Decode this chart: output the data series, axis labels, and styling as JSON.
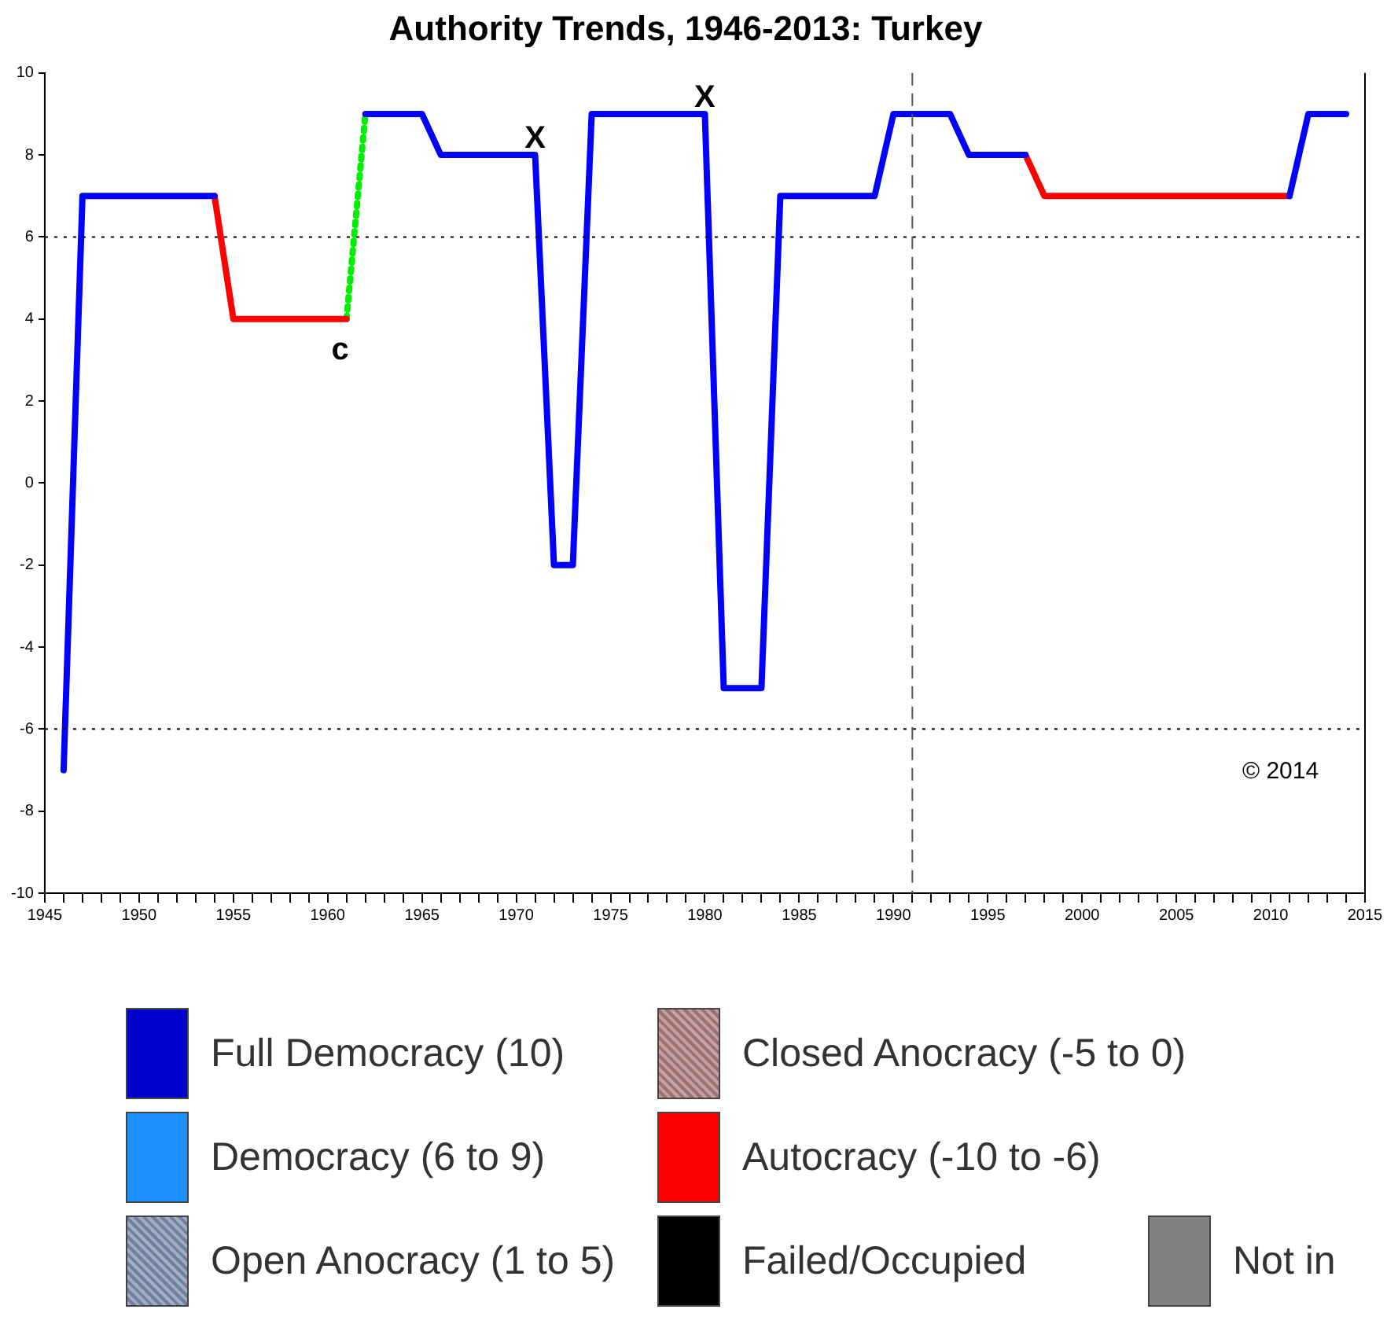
{
  "chart_data": {
    "type": "line",
    "title": "Authority Trends, 1946-2013: Turkey",
    "series": [
      {
        "color": "#0000ff",
        "x": [
          1946,
          1947,
          1948,
          1949,
          1950,
          1951,
          1952,
          1953,
          1954,
          1955,
          1956,
          1957,
          1958,
          1959,
          1960,
          1961,
          1962,
          1963,
          1964,
          1965,
          1966,
          1967,
          1968,
          1969,
          1970,
          1971,
          1972,
          1973,
          1974,
          1975,
          1976,
          1977,
          1978,
          1979,
          1980,
          1981,
          1982,
          1983,
          1984,
          1985,
          1986,
          1987,
          1988,
          1989,
          1990,
          1991,
          1992,
          1993,
          1994,
          1995,
          1996,
          1997,
          1998,
          1999,
          2000,
          2001,
          2002,
          2003,
          2004,
          2005,
          2006,
          2007,
          2008,
          2009,
          2010,
          2011,
          2012,
          2013,
          2014
        ],
        "values": [
          -7,
          7,
          7,
          7,
          7,
          7,
          7,
          7,
          7,
          null,
          null,
          null,
          null,
          null,
          null,
          null,
          9,
          9,
          9,
          9,
          8,
          8,
          8,
          8,
          8,
          8,
          -2,
          -2,
          9,
          9,
          9,
          9,
          9,
          9,
          9,
          -5,
          -5,
          -5,
          7,
          7,
          7,
          7,
          7,
          7,
          9,
          9,
          9,
          9,
          8,
          8,
          8,
          8,
          null,
          null,
          null,
          null,
          null,
          null,
          null,
          null,
          null,
          null,
          null,
          null,
          null,
          7,
          9,
          9,
          9
        ]
      },
      {
        "color": "#ff0000",
        "x": [
          1954,
          1955,
          1956,
          1957,
          1958,
          1959,
          1960,
          1961,
          1962,
          1996,
          1997,
          1998,
          1999,
          2000,
          2001,
          2002,
          2003,
          2004,
          2005,
          2006,
          2007,
          2008,
          2009,
          2010,
          2011
        ],
        "values": [
          7,
          4,
          4,
          4,
          4,
          4,
          4,
          4,
          null,
          null,
          8,
          7,
          7,
          7,
          7,
          7,
          7,
          7,
          7,
          7,
          7,
          7,
          7,
          7,
          7
        ]
      },
      {
        "color": "#00ee00",
        "x": [
          1961,
          1962
        ],
        "values": [
          4,
          9
        ],
        "line_style": "dotted"
      }
    ],
    "xlim": [
      1945,
      2015
    ],
    "xticks": [
      1945,
      {
        "value": 1946,
        "label": null
      },
      {
        "value": 1947,
        "label": null
      },
      {
        "value": 1948,
        "label": null
      },
      {
        "value": 1949,
        "label": null
      },
      1950,
      {
        "value": 1951,
        "label": null
      },
      {
        "value": 1952,
        "label": null
      },
      {
        "value": 1953,
        "label": null
      },
      {
        "value": 1954,
        "label": null
      },
      1955,
      {
        "value": 1956,
        "label": null
      },
      {
        "value": 1957,
        "label": null
      },
      {
        "value": 1958,
        "label": null
      },
      {
        "value": 1959,
        "label": null
      },
      1960,
      {
        "value": 1961,
        "label": null
      },
      {
        "value": 1962,
        "label": null
      },
      {
        "value": 1963,
        "label": null
      },
      {
        "value": 1964,
        "label": null
      },
      1965,
      {
        "value": 1966,
        "label": null
      },
      {
        "value": 1967,
        "label": null
      },
      {
        "value": 1968,
        "label": null
      },
      {
        "value": 1969,
        "label": null
      },
      1970,
      {
        "value": 1971,
        "label": null
      },
      {
        "value": 1972,
        "label": null
      },
      {
        "value": 1973,
        "label": null
      },
      {
        "value": 1974,
        "label": null
      },
      1975,
      {
        "value": 1976,
        "label": null
      },
      {
        "value": 1977,
        "label": null
      },
      {
        "value": 1978,
        "label": null
      },
      {
        "value": 1979,
        "label": null
      },
      1980,
      {
        "value": 1981,
        "label": null
      },
      {
        "value": 1982,
        "label": null
      },
      {
        "value": 1983,
        "label": null
      },
      {
        "value": 1984,
        "label": null
      },
      1985,
      {
        "value": 1986,
        "label": null
      },
      {
        "value": 1987,
        "label": null
      },
      {
        "value": 1988,
        "label": null
      },
      {
        "value": 1989,
        "label": null
      },
      1990,
      {
        "value": 1991,
        "label": null
      },
      {
        "value": 1992,
        "label": null
      },
      {
        "value": 1993,
        "label": null
      },
      {
        "value": 1994,
        "label": null
      },
      1995,
      {
        "value": 1996,
        "label": null
      },
      {
        "value": 1997,
        "label": null
      },
      {
        "value": 1998,
        "label": null
      },
      {
        "value": 1999,
        "label": null
      },
      2000,
      {
        "value": 2001,
        "label": null
      },
      {
        "value": 2002,
        "label": null
      },
      {
        "value": 2003,
        "label": null
      },
      {
        "value": 2004,
        "label": null
      },
      2005,
      {
        "value": 2006,
        "label": null
      },
      {
        "value": 2007,
        "label": null
      },
      {
        "value": 2008,
        "label": null
      },
      {
        "value": 2009,
        "label": null
      },
      2010,
      {
        "value": 2011,
        "label": null
      },
      {
        "value": 2012,
        "label": null
      },
      {
        "value": 2013,
        "label": null
      },
      {
        "value": 2014,
        "label": null
      },
      2015
    ],
    "ylim": [
      -10,
      10
    ],
    "yticks": [
      -10,
      -8,
      -6,
      -4,
      -2,
      0,
      2,
      4,
      6,
      8,
      10
    ],
    "grid": false,
    "legend": false,
    "marker": "none",
    "line_style": "solid",
    "ref_lines": [
      {
        "axis": "y",
        "value": 6,
        "line_style": "dotted",
        "color": "#000000"
      },
      {
        "axis": "y",
        "value": -6,
        "line_style": "dotted",
        "color": "#000000"
      },
      {
        "axis": "x",
        "value": 1991,
        "line_style": "dashed",
        "color": "#555555"
      }
    ],
    "annotations": [
      {
        "text": "c",
        "x": 1961,
        "y": 4
      },
      {
        "text": "X",
        "x": 1971,
        "y": 8
      },
      {
        "text": "X",
        "x": 1980,
        "y": 9
      },
      "© 2014",
      "Full Democracy (10)",
      "Closed Anocracy (-5 to 0)",
      "Democracy (6 to 9)",
      "Autocracy (-10 to -6)",
      "Open Anocracy (1 to 5)",
      "Failed/Occupied",
      "Not in"
    ]
  }
}
